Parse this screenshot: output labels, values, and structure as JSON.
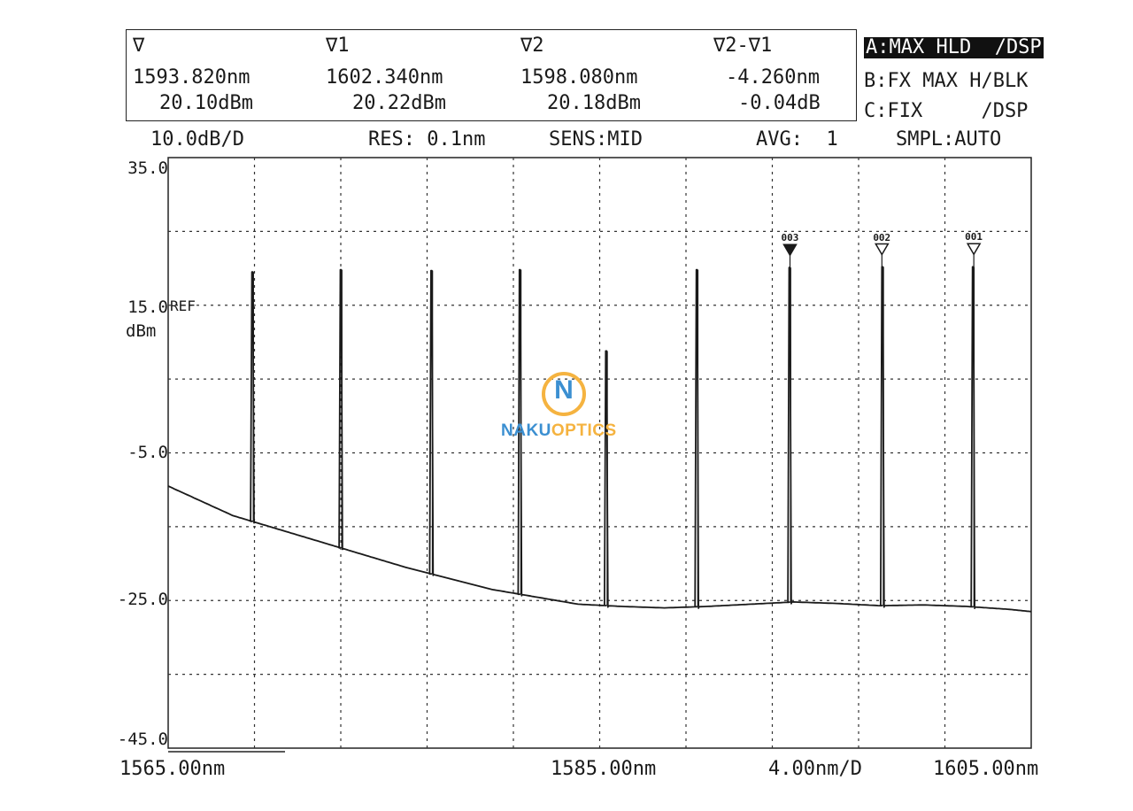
{
  "header": {
    "cols": [
      {
        "label": "∇",
        "wavelength": "1593.820nm",
        "level": "20.10dBm"
      },
      {
        "label": "∇1",
        "wavelength": "1602.340nm",
        "level": "20.22dBm"
      },
      {
        "label": "∇2",
        "wavelength": "1598.080nm",
        "level": "20.18dBm"
      },
      {
        "label": "∇2-∇1",
        "wavelength": "-4.260nm",
        "level": "-0.04dB"
      }
    ],
    "traces": {
      "a": "A:MAX HLD  /DSP",
      "b": "B:FX MAX H/BLK",
      "c": "C:FIX     /DSP"
    }
  },
  "settings": {
    "scale": "10.0dB/D",
    "res": "RES: 0.1nm",
    "sens": "SENS:MID",
    "avg": "AVG:  1",
    "smpl": "SMPL:AUTO"
  },
  "logo": {
    "letter": "N",
    "text_a": "NAKU",
    "text_b": "OPTICS"
  },
  "chart_data": {
    "type": "line",
    "title": "",
    "xlabel": "",
    "ylabel": "dBm",
    "ref_label": "REF",
    "xlim": [
      1565.0,
      1605.0
    ],
    "ylim": [
      -45.0,
      35.0
    ],
    "y_ticks": [
      "35.0",
      "15.0",
      "-5.0",
      "-25.0",
      "-45.0"
    ],
    "y_tick_values": [
      35,
      15,
      -5,
      -25,
      -45
    ],
    "x_tick_labels": [
      "1565.00nm",
      "1585.00nm",
      "1605.00nm"
    ],
    "x_tick_values": [
      1565,
      1585,
      1605
    ],
    "x_scale_label": "4.00nm/D",
    "grid": true,
    "baseline": {
      "x": [
        1565.0,
        1568.0,
        1572.0,
        1576.0,
        1580.0,
        1584.0,
        1586.0,
        1588.0,
        1590.0,
        1592.0,
        1594.0,
        1596.0,
        1598.0,
        1600.0,
        1602.0,
        1604.0,
        1605.0
      ],
      "y": [
        -9.5,
        -13.5,
        -17.0,
        -20.5,
        -23.5,
        -25.5,
        -25.8,
        -26.0,
        -25.8,
        -25.5,
        -25.2,
        -25.4,
        -25.7,
        -25.6,
        -25.8,
        -26.2,
        -26.5
      ]
    },
    "peaks": {
      "x": [
        1568.9,
        1573.0,
        1577.2,
        1581.3,
        1585.3,
        1589.5,
        1593.8,
        1598.1,
        1602.3
      ],
      "y": [
        19.5,
        19.8,
        19.7,
        19.8,
        8.8,
        19.8,
        20.1,
        20.2,
        20.2
      ]
    },
    "markers": [
      {
        "label": "003",
        "x": 1593.82,
        "y": 20.1,
        "filled": true
      },
      {
        "label": "002",
        "x": 1598.08,
        "y": 20.18,
        "filled": false
      },
      {
        "label": "001",
        "x": 1602.34,
        "y": 20.22,
        "filled": false
      }
    ]
  }
}
